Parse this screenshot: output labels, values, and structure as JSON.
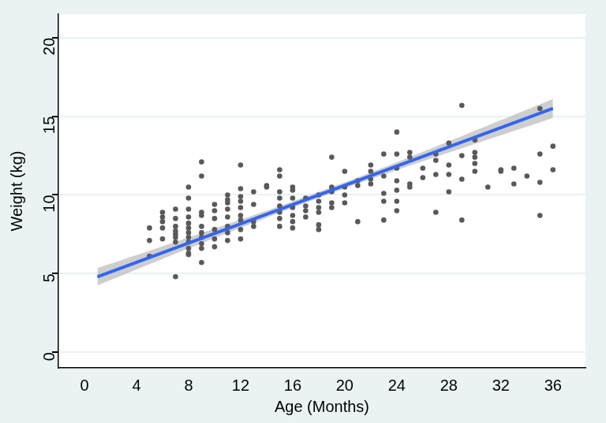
{
  "chart_data": {
    "type": "scatter",
    "x_label": "Age (Months)",
    "y_label": "Weight (kg)",
    "xlim": [
      -2,
      38.5
    ],
    "xticks": [
      0,
      4,
      8,
      12,
      16,
      20,
      24,
      28,
      32,
      36
    ],
    "ylim": [
      -1,
      21.5
    ],
    "yticks": [
      0,
      5,
      10,
      15,
      20
    ],
    "grid": true,
    "series": [
      {
        "type": "line",
        "color": "#3366ee",
        "line_style": "solid",
        "x": [
          1,
          36
        ],
        "values": [
          4.8,
          15.5
        ]
      },
      {
        "type": "scatter",
        "color": "#595959",
        "marker": "circle",
        "x": [
          5,
          5,
          5,
          6,
          6,
          6,
          6,
          6,
          7,
          7,
          7,
          7,
          7,
          7,
          7,
          7,
          8,
          8,
          8,
          8,
          8,
          8,
          8,
          8,
          8,
          8,
          8,
          8,
          9,
          9,
          9,
          9,
          9,
          9,
          9,
          9,
          9,
          9,
          10,
          10,
          10,
          10,
          10,
          10,
          11,
          11,
          11,
          11,
          11,
          11,
          11,
          11,
          12,
          12,
          12,
          12,
          12,
          12,
          12,
          12,
          12,
          13,
          13,
          13,
          13,
          14,
          14,
          15,
          15,
          15,
          15,
          15,
          15,
          15,
          15,
          16,
          16,
          16,
          16,
          16,
          16,
          16,
          17,
          17,
          17,
          17,
          18,
          18,
          18,
          18,
          18,
          18,
          19,
          19,
          19,
          19,
          19,
          20,
          20,
          20,
          20,
          21,
          21,
          21,
          22,
          22,
          22,
          22,
          23,
          23,
          23,
          23,
          23,
          24,
          24,
          24,
          24,
          24,
          24,
          24,
          25,
          25,
          25,
          25,
          26,
          26,
          27,
          27,
          27,
          27,
          28,
          28,
          28,
          28,
          29,
          29,
          29,
          29,
          30,
          30,
          30,
          30,
          30,
          31,
          32,
          32,
          33,
          33,
          34,
          35,
          35,
          35,
          35,
          36,
          36
        ],
        "values": [
          7.9,
          7.1,
          6.1,
          8.9,
          8.6,
          8.3,
          7.9,
          7.2,
          9.1,
          8.5,
          8.0,
          7.7,
          7.5,
          7.3,
          7.0,
          4.8,
          10.5,
          9.8,
          9.1,
          8.6,
          8.2,
          7.9,
          7.6,
          7.3,
          7.0,
          6.6,
          6.3,
          6.2,
          12.1,
          11.2,
          8.9,
          8.7,
          8.0,
          7.6,
          7.3,
          6.9,
          6.6,
          5.7,
          9.4,
          9.0,
          8.5,
          7.8,
          7.2,
          6.7,
          10.0,
          9.7,
          9.5,
          9.1,
          8.6,
          8.0,
          7.6,
          7.1,
          11.9,
          10.4,
          9.9,
          9.6,
          9.2,
          8.7,
          8.4,
          7.8,
          7.2,
          10.2,
          9.4,
          8.3,
          8.0,
          10.6,
          10.5,
          11.6,
          11.2,
          10.2,
          9.8,
          9.3,
          8.9,
          8.5,
          8.0,
          10.5,
          10.3,
          9.8,
          9.2,
          8.7,
          8.3,
          7.9,
          9.8,
          9.3,
          9.0,
          8.6,
          10.0,
          9.6,
          9.2,
          8.9,
          8.1,
          7.8,
          12.4,
          10.5,
          10.2,
          9.5,
          9.2,
          11.5,
          10.5,
          10.0,
          9.5,
          10.9,
          10.6,
          8.3,
          11.9,
          11.5,
          11.0,
          10.7,
          12.6,
          11.2,
          10.1,
          9.6,
          8.4,
          14.0,
          12.6,
          11.7,
          10.9,
          10.3,
          9.6,
          9.0,
          12.7,
          12.4,
          10.7,
          10.5,
          11.7,
          11.1,
          12.6,
          12.2,
          11.3,
          8.9,
          13.3,
          11.9,
          11.3,
          10.2,
          15.7,
          12.5,
          11.0,
          8.4,
          12.7,
          12.4,
          12.0,
          11.5,
          13.5,
          10.5,
          11.6,
          11.5,
          11.7,
          10.7,
          11.2,
          15.5,
          12.6,
          10.8,
          8.7,
          13.1,
          11.6
        ]
      },
      {
        "type": "band",
        "color": "#bdbdbd",
        "x": [
          1,
          6,
          11,
          16,
          21,
          26,
          31,
          36
        ],
        "lower": [
          4.25,
          5.93,
          7.58,
          9.19,
          10.71,
          12.14,
          13.52,
          14.9
        ],
        "upper": [
          5.35,
          6.73,
          8.14,
          9.59,
          11.11,
          12.74,
          14.42,
          16.1
        ]
      }
    ]
  }
}
